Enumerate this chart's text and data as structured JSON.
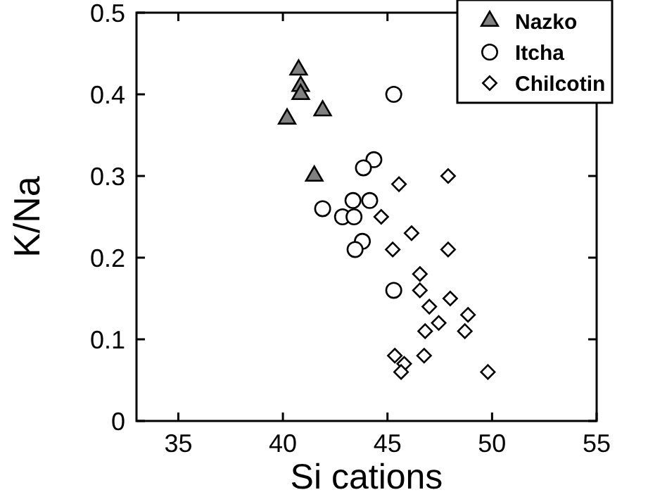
{
  "chart_data": {
    "type": "scatter",
    "xlabel": "Si cations",
    "ylabel": "K/Na",
    "xlim": [
      33,
      55
    ],
    "xticks": [
      35,
      40,
      45,
      50,
      55
    ],
    "ylim": [
      0,
      0.5
    ],
    "yticks": [
      0,
      0.1,
      0.2,
      0.3,
      0.4,
      0.5
    ],
    "grid": false,
    "legend": "top right",
    "series": [
      {
        "name": "Nazko",
        "color": "#808080",
        "marker": "triangle",
        "x": [
          40.75,
          40.85,
          40.85,
          40.2,
          41.9,
          41.5
        ],
        "values": [
          0.43,
          0.41,
          0.4,
          0.37,
          0.38,
          0.3
        ]
      },
      {
        "name": "Itcha",
        "color": "#ffffff",
        "marker": "circle",
        "x": [
          45.3,
          44.35,
          43.85,
          41.9,
          42.85,
          43.4,
          43.35,
          44.15,
          43.8,
          43.45,
          45.3
        ],
        "values": [
          0.4,
          0.32,
          0.31,
          0.26,
          0.25,
          0.25,
          0.27,
          0.27,
          0.22,
          0.21,
          0.16
        ]
      },
      {
        "name": "Chilcotin",
        "color": "#ffffff",
        "marker": "diamond",
        "x": [
          45.55,
          47.9,
          44.7,
          46.15,
          45.25,
          47.9,
          46.55,
          46.55,
          48.0,
          47.0,
          48.85,
          46.8,
          47.45,
          48.7,
          45.35,
          45.8,
          45.65,
          46.75,
          49.8
        ],
        "values": [
          0.29,
          0.3,
          0.25,
          0.23,
          0.21,
          0.21,
          0.18,
          0.16,
          0.15,
          0.14,
          0.13,
          0.11,
          0.12,
          0.11,
          0.08,
          0.07,
          0.06,
          0.08,
          0.06
        ]
      }
    ]
  }
}
